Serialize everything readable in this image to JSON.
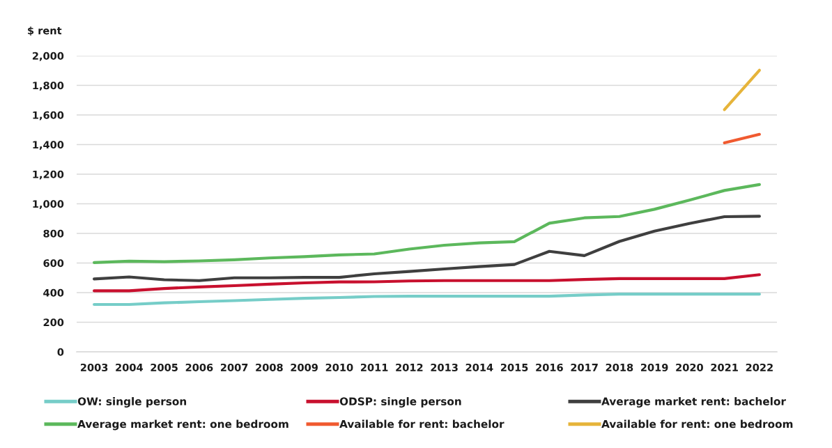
{
  "chart_data": {
    "type": "line",
    "ylabel": "$ rent",
    "categories": [
      "2003",
      "2004",
      "2005",
      "2006",
      "2007",
      "2008",
      "2009",
      "2010",
      "2011",
      "2012",
      "2013",
      "2014",
      "2015",
      "2016",
      "2017",
      "2018",
      "2019",
      "2020",
      "2021",
      "2022"
    ],
    "series": [
      {
        "name": "OW: single person",
        "color": "#76cdc8",
        "values": [
          320,
          320,
          331,
          339,
          346,
          354,
          362,
          367,
          374,
          376,
          376,
          376,
          376,
          376,
          384,
          390,
          390,
          390,
          390,
          390
        ]
      },
      {
        "name": "ODSP: single person",
        "color": "#c8102e",
        "values": [
          412,
          412,
          428,
          438,
          447,
          457,
          466,
          472,
          473,
          479,
          481,
          481,
          481,
          481,
          489,
          495,
          495,
          495,
          495,
          521
        ]
      },
      {
        "name": "Average market rent: bachelor",
        "color": "#3f3f3f",
        "values": [
          492,
          506,
          487,
          481,
          500,
          500,
          503,
          503,
          527,
          543,
          560,
          576,
          590,
          679,
          650,
          746,
          815,
          867,
          913,
          916
        ]
      },
      {
        "name": "Average market rent: one bedroom",
        "color": "#5cb85c",
        "values": [
          603,
          612,
          609,
          614,
          622,
          634,
          643,
          655,
          661,
          694,
          720,
          736,
          744,
          869,
          905,
          914,
          963,
          1025,
          1090,
          1130
        ]
      },
      {
        "name": "Available for rent: bachelor",
        "color": "#f05a30",
        "values": [
          null,
          null,
          null,
          null,
          null,
          null,
          null,
          null,
          null,
          null,
          null,
          null,
          null,
          null,
          null,
          null,
          null,
          null,
          1412,
          1469
        ]
      },
      {
        "name": "Available for rent: one bedroom",
        "color": "#e6b43a",
        "values": [
          null,
          null,
          null,
          null,
          null,
          null,
          null,
          null,
          null,
          null,
          null,
          null,
          null,
          null,
          null,
          null,
          null,
          null,
          1636,
          1902
        ]
      }
    ],
    "ylim": [
      0,
      2000
    ],
    "yticks": [
      0,
      200,
      400,
      600,
      800,
      {
        "value": 1000,
        "label": "1,000"
      },
      {
        "value": 1200,
        "label": "1,200"
      },
      {
        "value": 1400,
        "label": "1,400"
      },
      {
        "value": 1600,
        "label": "1,600"
      },
      {
        "value": 1800,
        "label": "1,800"
      },
      {
        "value": 2000,
        "label": "2,000"
      }
    ],
    "grid": "y",
    "legend": "bottom",
    "line_style": "solid",
    "marker": "none"
  }
}
